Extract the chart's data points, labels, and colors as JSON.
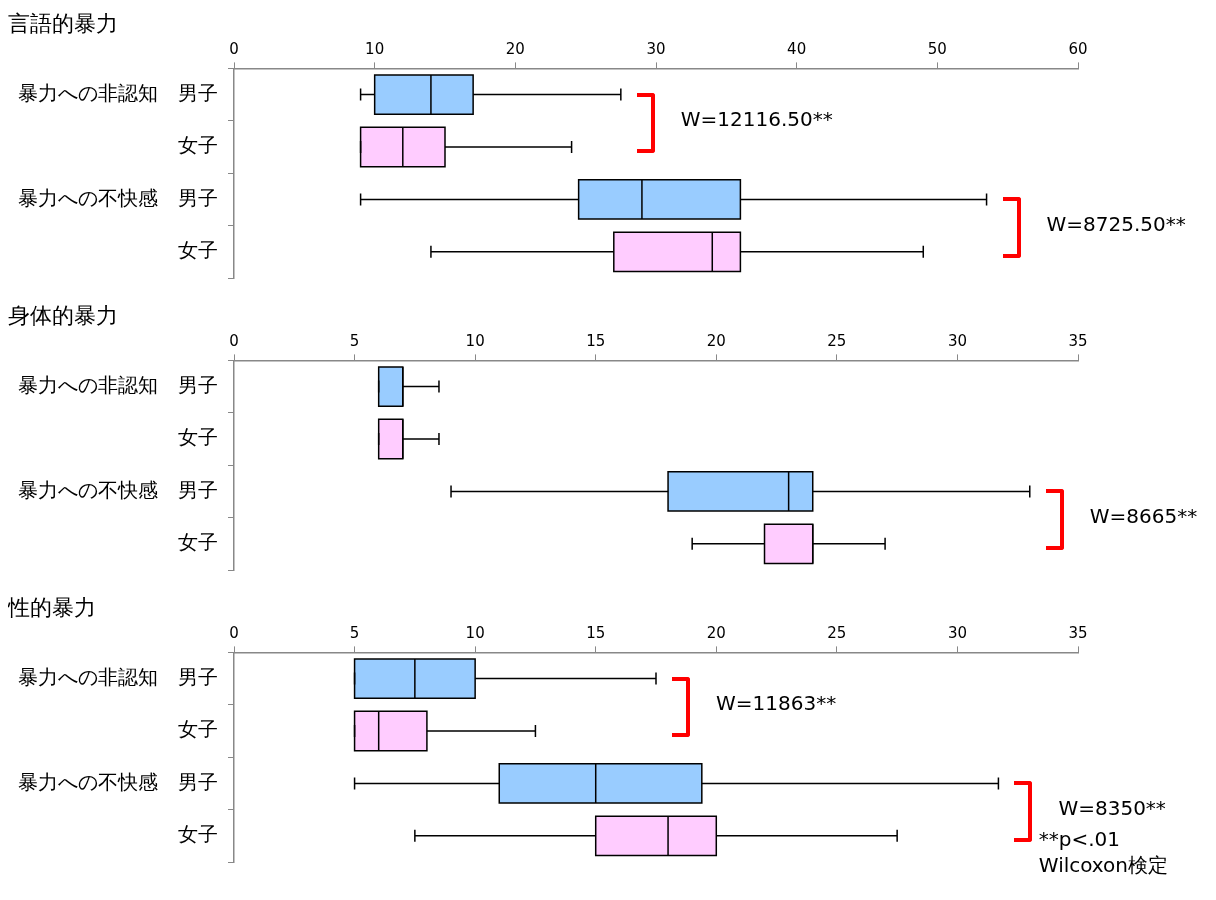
{
  "chart_data": [
    {
      "type": "box",
      "orientation": "horizontal",
      "title": "言語的暴力",
      "categories": [
        "暴力への非認知　男子",
        "女子",
        "暴力への不快感　男子",
        "女子"
      ],
      "xlim": [
        0,
        60
      ],
      "xticks": [
        0,
        10,
        20,
        30,
        40,
        50,
        60
      ],
      "colors": [
        "#99ccff",
        "#ffccff",
        "#99ccff",
        "#ffccff"
      ],
      "boxes": [
        {
          "low": 9,
          "q1": 10,
          "median": 14,
          "q3": 17,
          "high": 27.5
        },
        {
          "low": 9,
          "q1": 9,
          "median": 12,
          "q3": 15,
          "high": 24
        },
        {
          "low": 9,
          "q1": 24.5,
          "median": 29,
          "q3": 36,
          "high": 53.5
        },
        {
          "low": 14,
          "q1": 27,
          "median": 34,
          "q3": 36,
          "high": 49
        }
      ],
      "annotations": [
        "W=12116.50**",
        "W=8725.50**"
      ]
    },
    {
      "type": "box",
      "orientation": "horizontal",
      "title": "身体的暴力",
      "categories": [
        "暴力への非認知　男子",
        "女子",
        "暴力への不快感　男子",
        "女子"
      ],
      "xlim": [
        0,
        35
      ],
      "xticks": [
        0,
        5,
        10,
        15,
        20,
        25,
        30,
        35
      ],
      "colors": [
        "#99ccff",
        "#ffccff",
        "#99ccff",
        "#ffccff"
      ],
      "boxes": [
        {
          "low": 6,
          "q1": 6,
          "median": 7,
          "q3": 7,
          "high": 8.5
        },
        {
          "low": 6,
          "q1": 6,
          "median": 7,
          "q3": 7,
          "high": 8.5
        },
        {
          "low": 9,
          "q1": 18,
          "median": 23,
          "q3": 24,
          "high": 33
        },
        {
          "low": 19,
          "q1": 22,
          "median": 24,
          "q3": 24,
          "high": 27
        }
      ],
      "annotations": [
        "W=8665**"
      ]
    },
    {
      "type": "box",
      "orientation": "horizontal",
      "title": "性的暴力",
      "categories": [
        "暴力への非認知　男子",
        "女子",
        "暴力への不快感　男子",
        "女子"
      ],
      "xlim": [
        0,
        35
      ],
      "xticks": [
        0,
        5,
        10,
        15,
        20,
        25,
        30,
        35
      ],
      "colors": [
        "#99ccff",
        "#ffccff",
        "#99ccff",
        "#ffccff"
      ],
      "boxes": [
        {
          "low": 5,
          "q1": 5,
          "median": 7.5,
          "q3": 10,
          "high": 17.5
        },
        {
          "low": 5,
          "q1": 5,
          "median": 6,
          "q3": 8,
          "high": 12.5
        },
        {
          "low": 5,
          "q1": 11,
          "median": 15,
          "q3": 19.4,
          "high": 31.7
        },
        {
          "low": 7.5,
          "q1": 15,
          "median": 18,
          "q3": 20,
          "high": 27.5
        }
      ],
      "annotations": [
        "W=11863**",
        "W=8350**"
      ]
    },
    {
      "type": "other",
      "annotations": [
        "**p<.01",
        "Wilcoxon検定"
      ]
    }
  ]
}
